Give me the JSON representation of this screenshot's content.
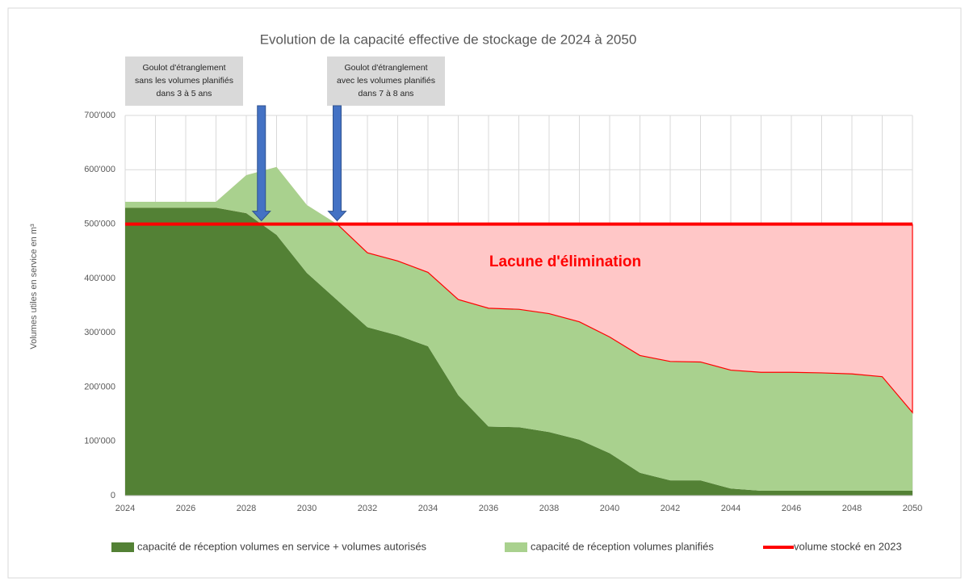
{
  "chart_data": {
    "type": "area",
    "title": "Evolution de la capacité effective de stockage de 2024 à 2050",
    "y_label": "Volumes utiles en service en m³",
    "x": [
      2024,
      2025,
      2026,
      2027,
      2028,
      2029,
      2030,
      2031,
      2032,
      2033,
      2034,
      2035,
      2036,
      2037,
      2038,
      2039,
      2040,
      2041,
      2042,
      2043,
      2044,
      2045,
      2046,
      2047,
      2048,
      2049,
      2050
    ],
    "xlim": [
      2024,
      2050
    ],
    "xticks": [
      2024,
      2026,
      2028,
      2030,
      2032,
      2034,
      2036,
      2038,
      2040,
      2042,
      2044,
      2046,
      2048,
      2050
    ],
    "ylim": [
      0,
      700000
    ],
    "yticks": [
      0,
      {
        "value": 100000,
        "label": "100'000"
      },
      {
        "value": 200000,
        "label": "200'000"
      },
      {
        "value": 300000,
        "label": "300'000"
      },
      {
        "value": 400000,
        "label": "400'000"
      },
      {
        "value": 500000,
        "label": "500'000"
      },
      {
        "value": 600000,
        "label": "600'000"
      },
      {
        "value": 700000,
        "label": "700'000"
      }
    ],
    "grid": true,
    "legend": "bottom",
    "series": [
      {
        "name": "capacité de réception volumes en service + volumes autorisés",
        "color": "#538135",
        "stacked": true,
        "values": [
          530000,
          530000,
          530000,
          530000,
          520000,
          480000,
          410000,
          360000,
          310000,
          295000,
          275000,
          185000,
          127000,
          126000,
          117000,
          103000,
          78000,
          42000,
          28000,
          28000,
          13000,
          9000,
          9000,
          9000,
          9000,
          9000,
          9000
        ]
      },
      {
        "name": "capacité de réception volumes planifiés",
        "color": "#a9d18e",
        "stacked": true,
        "values": [
          11000,
          11000,
          11000,
          11000,
          70000,
          125000,
          125000,
          140000,
          137000,
          137000,
          136000,
          176000,
          218000,
          217000,
          218000,
          217000,
          214000,
          216000,
          219000,
          218000,
          218000,
          218000,
          218000,
          217000,
          215000,
          210000,
          144000
        ]
      },
      {
        "name": "volume stocké en 2023",
        "color": "#ff0000",
        "line": true,
        "values": [
          500000,
          500000,
          500000,
          500000,
          500000,
          500000,
          500000,
          500000,
          500000,
          500000,
          500000,
          500000,
          500000,
          500000,
          500000,
          500000,
          500000,
          500000,
          500000,
          500000,
          500000,
          500000,
          500000,
          500000,
          500000,
          500000,
          500000
        ]
      }
    ],
    "gap_label": "Lacune d'élimination",
    "gap_color": "#ffc7c7",
    "annotations": [
      {
        "text": [
          "Goulot d'étranglement",
          "sans les volumes planifiés",
          "dans 3 à 5 ans"
        ],
        "x": 2028.5,
        "y": 500000
      },
      {
        "text": [
          "Goulot d'étranglement",
          "avec les volumes planifiés",
          "dans 7 à 8 ans"
        ],
        "x": 2031,
        "y": 500000
      }
    ]
  }
}
